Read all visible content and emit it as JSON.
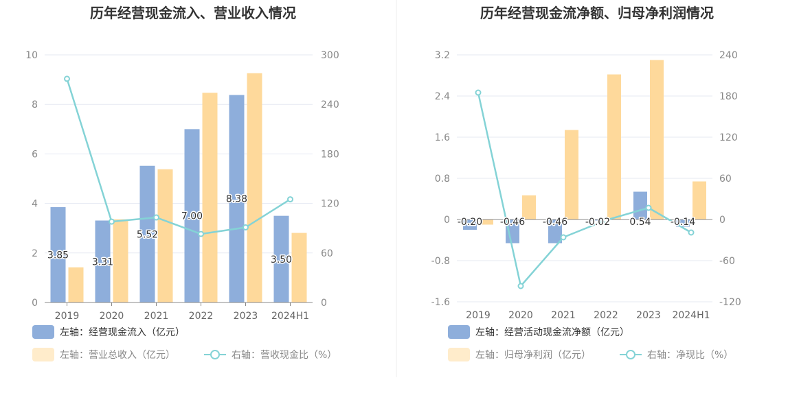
{
  "chart_data": [
    {
      "type": "bar",
      "title": "历年经营现金流入、营业收入情况",
      "categories": [
        "2019",
        "2020",
        "2021",
        "2022",
        "2023",
        "2024H1"
      ],
      "y_left": {
        "min": 0,
        "max": 10,
        "ticks": [
          "0",
          "2",
          "4",
          "6",
          "8",
          "10"
        ]
      },
      "y_right": {
        "min": 0,
        "max": 300,
        "ticks": [
          "0",
          "60",
          "120",
          "180",
          "240",
          "300"
        ]
      },
      "series": [
        {
          "name": "左轴：经营现金流入（亿元）",
          "kind": "bar",
          "axis": "left",
          "color": "#8eaedb",
          "values": [
            3.85,
            3.31,
            5.52,
            7.0,
            8.38,
            3.5
          ],
          "labels": [
            "3.85",
            "3.31",
            "5.52",
            "7.00",
            "8.38",
            "3.50"
          ]
        },
        {
          "name": "左轴：营业总收入（亿元）",
          "kind": "bar",
          "axis": "left",
          "color": "#fed99b",
          "values": [
            1.42,
            3.36,
            5.38,
            8.47,
            9.26,
            2.81
          ]
        },
        {
          "name": "右轴：营收现金比（%）",
          "kind": "line",
          "axis": "right",
          "color": "#84d3d6",
          "values": [
            271,
            98,
            103,
            83,
            91,
            125
          ]
        }
      ],
      "grid": true,
      "legend_position": "bottom-left"
    },
    {
      "type": "bar",
      "title": "历年经营现金流净额、归母净利润情况",
      "categories": [
        "2019",
        "2020",
        "2021",
        "2022",
        "2023",
        "2024H1"
      ],
      "y_left": {
        "min": -1.6,
        "max": 3.2,
        "ticks": [
          "-1.6",
          "-0.8",
          "0",
          "0.8",
          "1.6",
          "2.4",
          "3.2"
        ]
      },
      "y_right": {
        "min": -120,
        "max": 240,
        "ticks": [
          "-120",
          "-60",
          "0",
          "60",
          "120",
          "180",
          "240"
        ]
      },
      "series": [
        {
          "name": "左轴：经营活动现金流净额（亿元）",
          "kind": "bar",
          "axis": "left",
          "color": "#8eaedb",
          "values": [
            -0.2,
            -0.46,
            -0.46,
            -0.02,
            0.54,
            -0.14
          ],
          "labels": [
            "-0.20",
            "-0.46",
            "-0.46",
            "-0.02",
            "0.54",
            "-0.14"
          ]
        },
        {
          "name": "左轴：归母净利润（亿元）",
          "kind": "bar",
          "axis": "left",
          "color": "#fed99b",
          "values": [
            -0.1,
            0.47,
            1.74,
            2.82,
            3.1,
            0.74
          ]
        },
        {
          "name": "右轴：净现比（%）",
          "kind": "line",
          "axis": "right",
          "color": "#84d3d6",
          "values": [
            185,
            -97,
            -26,
            -1,
            17,
            -19
          ]
        }
      ],
      "grid": true,
      "legend_position": "bottom-left"
    }
  ]
}
